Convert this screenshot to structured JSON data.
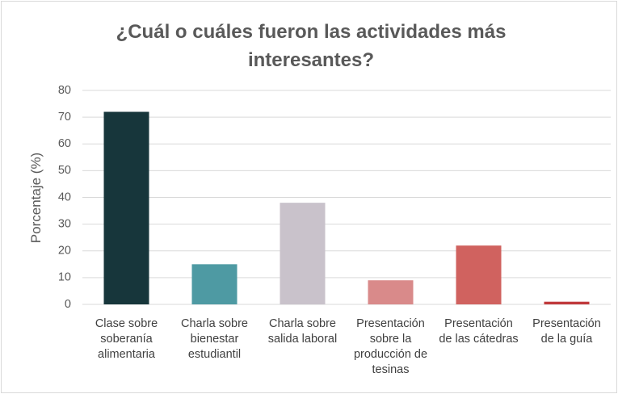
{
  "chart_data": {
    "type": "bar",
    "title": "¿Cuál o cuáles fueron las actividades más interesantes?",
    "y_label": "Porcentaje (%)",
    "categories": [
      "Clase sobre soberanía alimentaria",
      "Charla sobre bienestar estudiantil",
      "Charla sobre salida laboral",
      "Presentación sobre la producción de tesinas",
      "Presentación de las cátedras",
      "Presentación de la guía"
    ],
    "values": [
      72,
      15,
      38,
      9,
      22,
      1
    ],
    "colors": [
      "#17363b",
      "#4e9aa3",
      "#c9c2cb",
      "#d98a8a",
      "#d0625f",
      "#c0393b"
    ],
    "ylim": [
      0,
      80
    ],
    "yticks": [
      0,
      10,
      20,
      30,
      40,
      50,
      60,
      70,
      80
    ],
    "grid": true
  }
}
